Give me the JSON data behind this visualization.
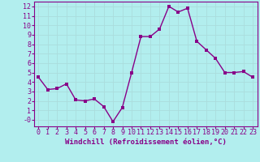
{
  "x": [
    0,
    1,
    2,
    3,
    4,
    5,
    6,
    7,
    8,
    9,
    10,
    11,
    12,
    13,
    14,
    15,
    16,
    17,
    18,
    19,
    20,
    21,
    22,
    23
  ],
  "y": [
    4.5,
    3.2,
    3.3,
    3.8,
    2.1,
    2.0,
    2.2,
    1.4,
    -0.2,
    1.3,
    5.0,
    8.8,
    8.8,
    9.6,
    12.0,
    11.4,
    11.8,
    8.3,
    7.4,
    6.5,
    5.0,
    5.0,
    5.1,
    4.5
  ],
  "line_color": "#880088",
  "marker_color": "#880088",
  "bg_color": "#b2eeee",
  "grid_color": "#aadddd",
  "xlabel": "Windchill (Refroidissement éolien,°C)",
  "ylim": [
    -0.7,
    12.5
  ],
  "xlim": [
    -0.5,
    23.5
  ],
  "xticks": [
    0,
    1,
    2,
    3,
    4,
    5,
    6,
    7,
    8,
    9,
    10,
    11,
    12,
    13,
    14,
    15,
    16,
    17,
    18,
    19,
    20,
    21,
    22,
    23
  ],
  "yticks": [
    0,
    1,
    2,
    3,
    4,
    5,
    6,
    7,
    8,
    9,
    10,
    11,
    12
  ],
  "ytick_labels": [
    "-0",
    "1",
    "2",
    "3",
    "4",
    "5",
    "6",
    "7",
    "8",
    "9",
    "10",
    "11",
    "12"
  ],
  "marker_size": 2.5,
  "line_width": 1.0,
  "xlabel_fontsize": 6.5,
  "tick_fontsize": 6.0,
  "spine_color": "#880088"
}
